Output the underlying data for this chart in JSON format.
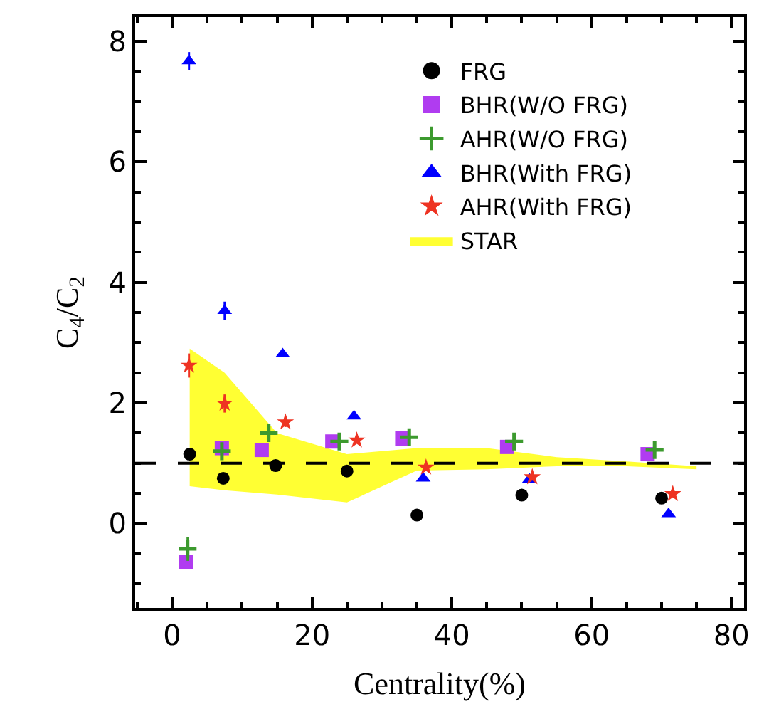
{
  "chart_data": {
    "type": "scatter",
    "xlabel": "Centrality(%)",
    "ylabel": "C$_{4}$/C$_{2}$",
    "xlim": [
      -5.3,
      81.8
    ],
    "ylim": [
      -1.4,
      8.4
    ],
    "xticks": [
      0,
      20,
      40,
      60,
      80
    ],
    "yticks": [
      0,
      2,
      4,
      6,
      8
    ],
    "legend": "top right",
    "ref_lines": [
      {
        "axis": "y",
        "value": 1,
        "color": "#000000",
        "line_style": "dashed"
      }
    ],
    "series": [
      {
        "name": "STAR",
        "type": "area",
        "color": "#ffff33",
        "x": [
          2.5,
          7.5,
          15,
          25,
          35,
          45,
          55,
          65,
          75
        ],
        "values": [
          null,
          null,
          null,
          null,
          null,
          null,
          null,
          null,
          null
        ],
        "lower": [
          0.62,
          0.55,
          0.48,
          0.35,
          0.88,
          0.9,
          0.95,
          0.95,
          0.9
        ],
        "upper": [
          2.9,
          2.5,
          1.5,
          1.15,
          1.25,
          1.25,
          1.1,
          1.03,
          0.95
        ]
      },
      {
        "name": "FRG",
        "color": "#000000",
        "marker": "circle",
        "x": [
          2.5,
          7.3,
          14.8,
          25,
          35,
          50,
          70
        ],
        "values": [
          1.15,
          0.75,
          0.96,
          0.87,
          0.14,
          0.47,
          0.42
        ]
      },
      {
        "name": "BHR(W/O FRG)",
        "color": "#b03cf0",
        "marker": "square",
        "x": [
          2.0,
          7.1,
          12.8,
          22.9,
          32.9,
          47.9,
          68
        ],
        "values": [
          -0.64,
          1.25,
          1.22,
          1.36,
          1.41,
          1.27,
          1.15
        ],
        "errors": [
          0.1,
          null,
          null,
          null,
          null,
          null,
          null
        ]
      },
      {
        "name": "AHR(W/O FRG)",
        "color": "#3c9a2e",
        "marker": "cross",
        "x": [
          2.2,
          7.1,
          13.8,
          23.9,
          33.9,
          48.9,
          69
        ],
        "values": [
          -0.42,
          1.2,
          1.5,
          1.36,
          1.43,
          1.36,
          1.22
        ],
        "errors": [
          0.2,
          0.1,
          null,
          null,
          null,
          null,
          null
        ]
      },
      {
        "name": "BHR(With FRG)",
        "color": "#0000ff",
        "marker": "triangle",
        "x": [
          2.4,
          7.5,
          15.8,
          26,
          35.9,
          51.1,
          71
        ],
        "values": [
          7.67,
          3.53,
          2.81,
          1.78,
          0.75,
          0.73,
          0.16
        ],
        "errors": [
          0.15,
          0.15,
          null,
          null,
          null,
          null,
          null
        ]
      },
      {
        "name": "AHR(With FRG)",
        "color": "#ee3322",
        "marker": "star",
        "x": [
          2.4,
          7.5,
          16.2,
          26.4,
          36.3,
          51.5,
          71.6
        ],
        "values": [
          2.62,
          1.99,
          1.68,
          1.38,
          0.93,
          0.77,
          0.49
        ],
        "errors": [
          0.2,
          0.15,
          0.08,
          null,
          null,
          null,
          null
        ]
      }
    ]
  }
}
